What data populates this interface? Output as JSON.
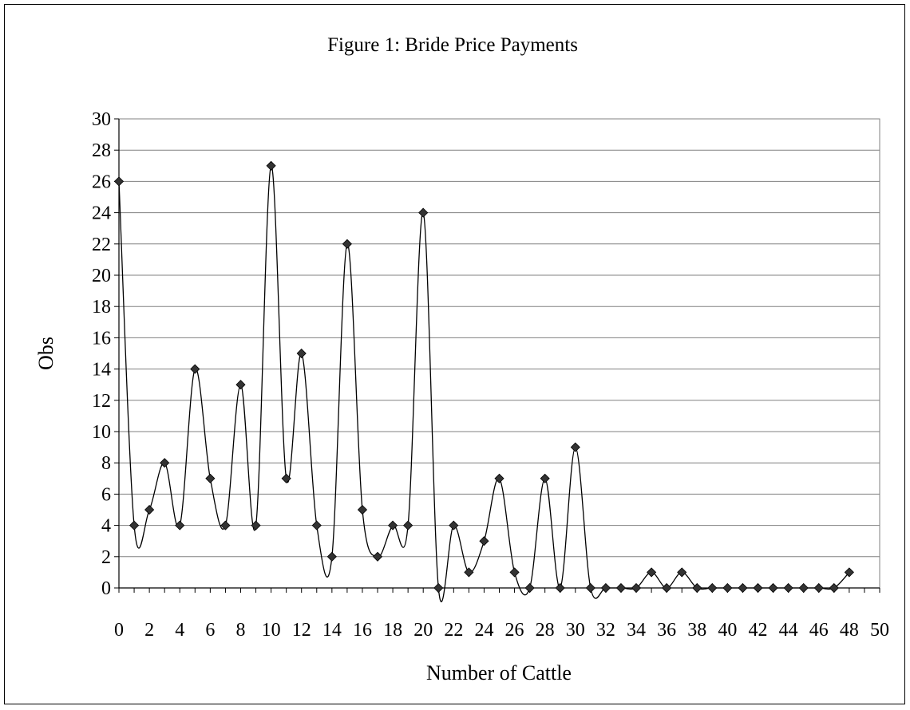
{
  "chart_data": {
    "type": "line",
    "title": "Figure 1: Bride Price Payments",
    "xlabel": "Number of Cattle",
    "ylabel": "Obs",
    "xlim": [
      0,
      50
    ],
    "ylim": [
      0,
      30
    ],
    "x_ticks": [
      0,
      2,
      4,
      6,
      8,
      10,
      12,
      14,
      16,
      18,
      20,
      22,
      24,
      26,
      28,
      30,
      32,
      34,
      36,
      38,
      40,
      42,
      44,
      46,
      48,
      50
    ],
    "y_ticks": [
      0,
      2,
      4,
      6,
      8,
      10,
      12,
      14,
      16,
      18,
      20,
      22,
      24,
      26,
      28,
      30
    ],
    "grid": "horizontal",
    "smoothed": true,
    "marker": "diamond",
    "series_color": "#333333",
    "series": [
      {
        "x": [
          0,
          1,
          2,
          3,
          4,
          5,
          6,
          7,
          8,
          9,
          10,
          11,
          12,
          13,
          14,
          15,
          16,
          17,
          18,
          19,
          20,
          21,
          22,
          23,
          24,
          25,
          26,
          27,
          28,
          29,
          30,
          31,
          32,
          33,
          34,
          35,
          36,
          37,
          38,
          39,
          40,
          41,
          42,
          43,
          44,
          45,
          46,
          47,
          48
        ],
        "values": [
          26,
          4,
          5,
          8,
          4,
          14,
          7,
          4,
          13,
          4,
          27,
          7,
          15,
          4,
          2,
          22,
          5,
          2,
          4,
          4,
          24,
          0,
          4,
          1,
          3,
          7,
          1,
          0,
          7,
          0,
          9,
          0,
          0,
          0,
          0,
          1,
          0,
          1,
          0,
          0,
          0,
          0,
          0,
          0,
          0,
          0,
          0,
          0,
          1
        ]
      }
    ]
  }
}
